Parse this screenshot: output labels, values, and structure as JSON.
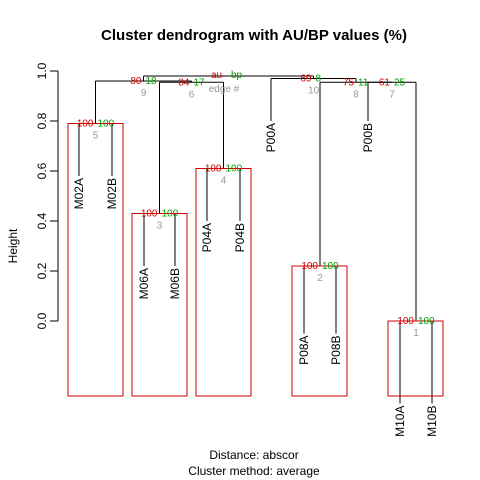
{
  "chart_data": {
    "type": "dendrogram",
    "title": "Cluster dendrogram with AU/BP values (%)",
    "ylabel": "Height",
    "ylim": [
      0,
      1
    ],
    "yticks": [
      "0.0",
      "0.2",
      "0.4",
      "0.6",
      "0.8",
      "1.0"
    ],
    "distance_caption": "Distance:  abscor",
    "method_caption": "Cluster method: average",
    "legend": {
      "au": "au",
      "bp": "bp",
      "edge": "edge #"
    },
    "leaves": [
      "M02A",
      "M02B",
      "M06A",
      "M06B",
      "P04A",
      "P04B",
      "P00A",
      "P08A",
      "P08B",
      "P00B",
      "M10A",
      "M10B"
    ],
    "merges": [
      {
        "edge": "1",
        "height": 0.0,
        "au": "100",
        "bp": "100",
        "highlight": true
      },
      {
        "edge": "2",
        "height": 0.22,
        "au": "100",
        "bp": "100",
        "highlight": true
      },
      {
        "edge": "3",
        "height": 0.43,
        "au": "100",
        "bp": "100",
        "highlight": true
      },
      {
        "edge": "4",
        "height": 0.61,
        "au": "100",
        "bp": "100",
        "highlight": true
      },
      {
        "edge": "5",
        "height": 0.79,
        "au": "100",
        "bp": "100",
        "highlight": true
      },
      {
        "edge": "6",
        "height": 0.955,
        "au": "84",
        "bp": "17",
        "highlight": false
      },
      {
        "edge": "7",
        "height": 0.955,
        "au": "61",
        "bp": "25",
        "highlight": false
      },
      {
        "edge": "8",
        "height": 0.955,
        "au": "75",
        "bp": "11",
        "highlight": false
      },
      {
        "edge": "9",
        "height": 0.96,
        "au": "80",
        "bp": "18",
        "highlight": false
      },
      {
        "edge": "10",
        "height": 0.97,
        "au": "69",
        "bp": "8",
        "highlight": false
      }
    ]
  }
}
